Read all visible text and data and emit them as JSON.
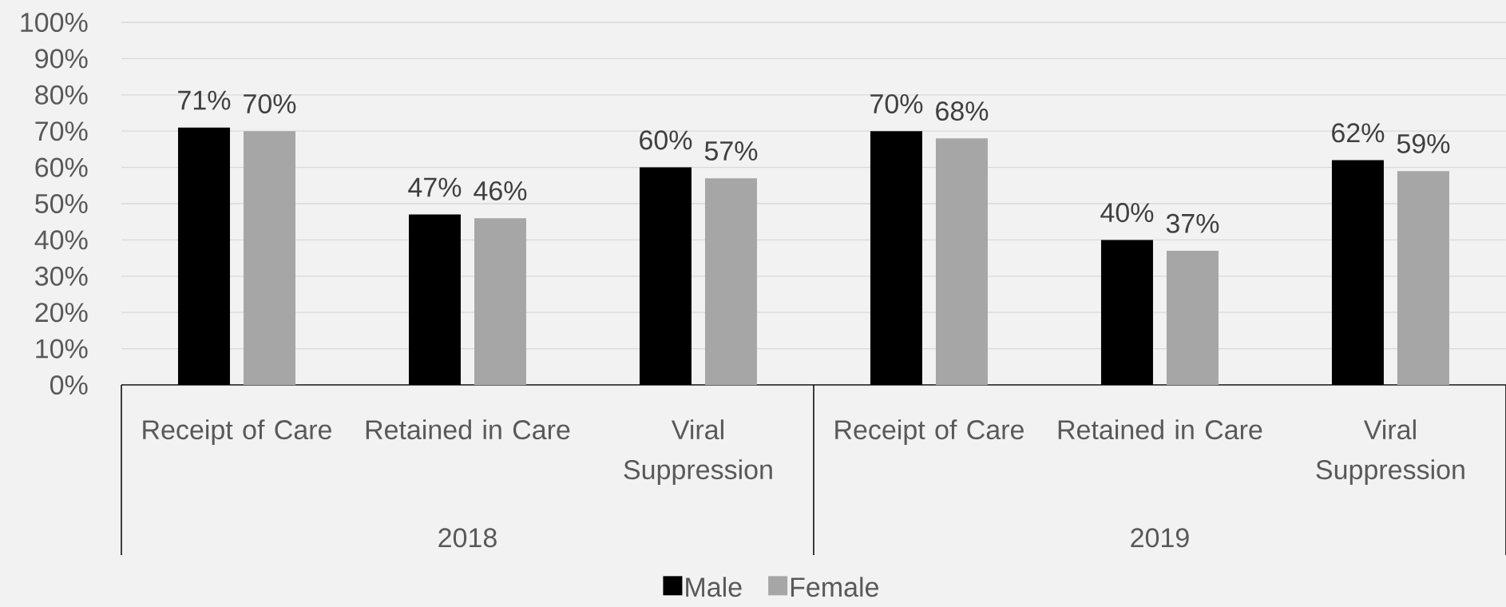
{
  "chart_data": {
    "type": "bar",
    "categories": [
      "Receipt of Care",
      "Retained in Care",
      "Viral Suppression",
      "Receipt of Care",
      "Retained in Care",
      "Viral Suppression"
    ],
    "series": [
      {
        "name": "Male",
        "color": "#000000",
        "values": [
          71,
          47,
          60,
          70,
          40,
          62
        ],
        "value_labels": [
          "71%",
          "47%",
          "60%",
          "70%",
          "40%",
          "62%"
        ]
      },
      {
        "name": "Female",
        "color": "#a6a6a6",
        "values": [
          70,
          46,
          57,
          68,
          37,
          59
        ],
        "value_labels": [
          "70%",
          "46%",
          "57%",
          "68%",
          "37%",
          "59%"
        ]
      }
    ],
    "ylim": [
      0,
      100
    ],
    "yticks": [
      {
        "value": 0,
        "label": "0%"
      },
      {
        "value": 10,
        "label": "10%"
      },
      {
        "value": 20,
        "label": "20%"
      },
      {
        "value": 30,
        "label": "30%"
      },
      {
        "value": 40,
        "label": "40%"
      },
      {
        "value": 50,
        "label": "50%"
      },
      {
        "value": 60,
        "label": "60%"
      },
      {
        "value": 70,
        "label": "70%"
      },
      {
        "value": 80,
        "label": "80%"
      },
      {
        "value": 90,
        "label": "90%"
      },
      {
        "value": 100,
        "label": "100%"
      }
    ],
    "grid": "y",
    "legend": "bottom",
    "annotations": [
      "2018",
      "2019"
    ]
  }
}
